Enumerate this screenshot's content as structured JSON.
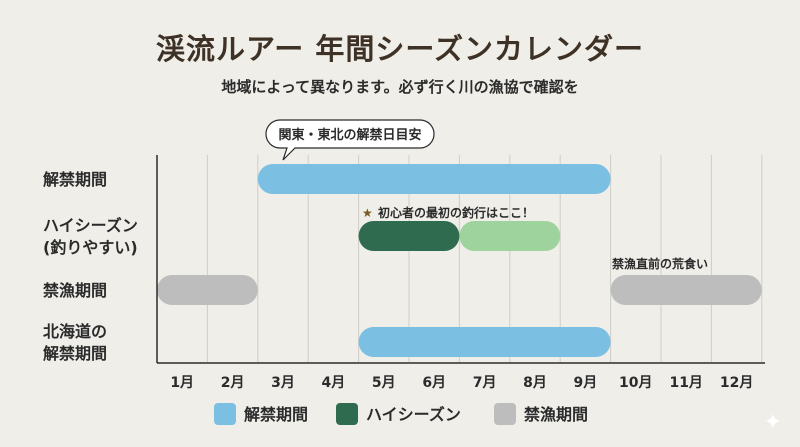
{
  "title": "渓流ルアー 年間シーズンカレンダー",
  "subtitle": "地域によって異なります。必ず行く川の漁協で確認を",
  "chart_data": {
    "type": "gantt",
    "categories": [
      "1月",
      "2月",
      "3月",
      "4月",
      "5月",
      "6月",
      "7月",
      "8月",
      "9月",
      "10月",
      "11月",
      "12月"
    ],
    "rows": [
      {
        "label": [
          "解禁期間"
        ],
        "bars": [
          {
            "start": 3,
            "end": 9,
            "series": "open"
          }
        ]
      },
      {
        "label": [
          "ハイシーズン",
          "(釣りやすい)"
        ],
        "bars": [
          {
            "start": 5,
            "end": 6,
            "series": "high"
          },
          {
            "start": 7,
            "end": 8,
            "series": "high_light"
          }
        ]
      },
      {
        "label": [
          "禁漁期間"
        ],
        "bars": [
          {
            "start": 1,
            "end": 2,
            "series": "closed"
          },
          {
            "start": 10,
            "end": 12,
            "series": "closed"
          }
        ]
      },
      {
        "label": [
          "北海道の",
          "解禁期間"
        ],
        "bars": [
          {
            "start": 5,
            "end": 9,
            "series": "open"
          }
        ]
      }
    ],
    "colors": {
      "open": "#7bbfe2",
      "high": "#2e6b4f",
      "high_light": "#9fd39d",
      "closed": "#bdbdbd"
    },
    "annotations": {
      "callout": "関東・東北の解禁日目安",
      "beginner": "初心者の最初の釣行はここ！",
      "preclose": "禁漁直前の荒食い"
    },
    "legend": [
      {
        "label": "解禁期間",
        "series": "open"
      },
      {
        "label": "ハイシーズン",
        "series": "high"
      },
      {
        "label": "禁漁期間",
        "series": "closed"
      }
    ],
    "legend_position": "bottom"
  }
}
